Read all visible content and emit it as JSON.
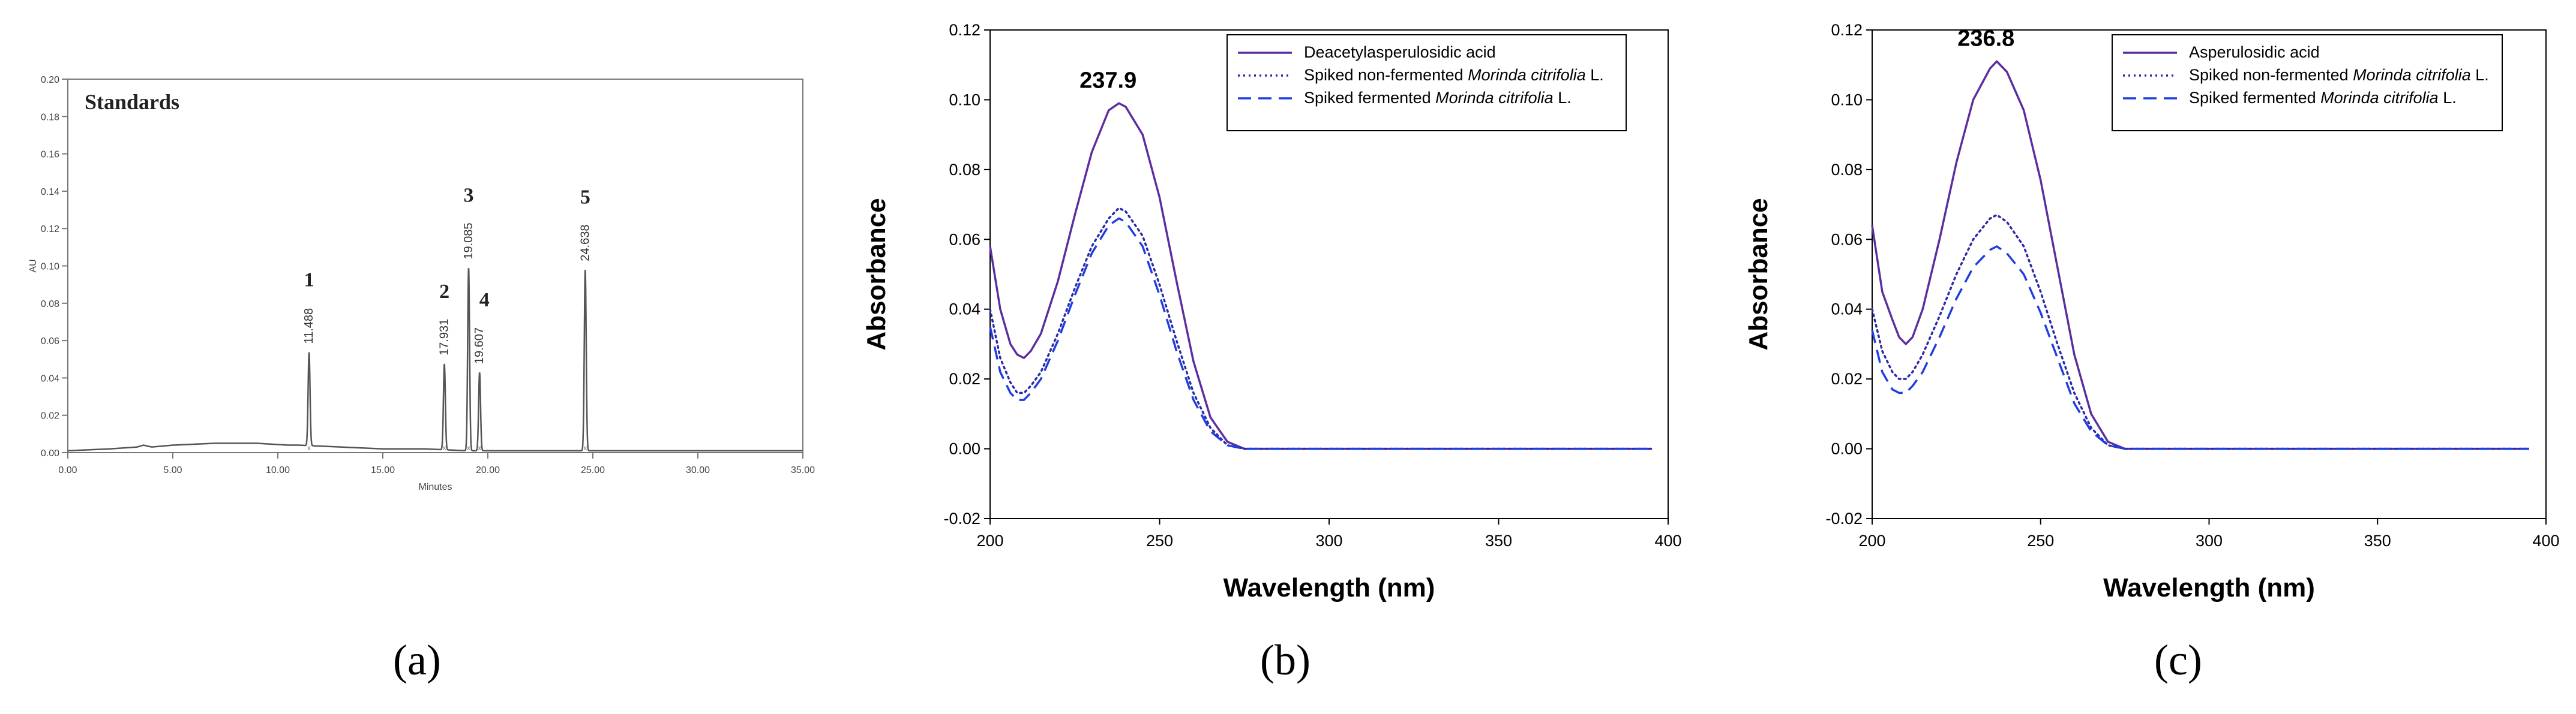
{
  "chart_data": [
    {
      "panel_label": "a",
      "type": "line",
      "title": "Standards",
      "xlabel": "Minutes",
      "ylabel": "AU",
      "xlim": [
        0,
        35
      ],
      "ylim": [
        0,
        0.2
      ],
      "xticks": [
        "0.00",
        "5.00",
        "10.00",
        "15.00",
        "20.00",
        "25.00",
        "30.00",
        "35.00"
      ],
      "yticks": [
        "0.00",
        "0.02",
        "0.04",
        "0.06",
        "0.08",
        "0.10",
        "0.12",
        "0.14",
        "0.16",
        "0.18",
        "0.20"
      ],
      "color": "#555555",
      "peaks": [
        {
          "number": "1",
          "retention_time": "11.488",
          "rt": 11.488,
          "height": 0.05
        },
        {
          "number": "2",
          "retention_time": "17.931",
          "rt": 17.931,
          "height": 0.046
        },
        {
          "number": "3",
          "retention_time": "19.085",
          "rt": 19.085,
          "height": 0.098
        },
        {
          "number": "4",
          "retention_time": "19.607",
          "rt": 19.607,
          "height": 0.042
        },
        {
          "number": "5",
          "retention_time": "24.638",
          "rt": 24.638,
          "height": 0.097
        }
      ],
      "baseline": [
        [
          0,
          0.001
        ],
        [
          2,
          0.002
        ],
        [
          3.3,
          0.003
        ],
        [
          3.6,
          0.004
        ],
        [
          4,
          0.003
        ],
        [
          5,
          0.004
        ],
        [
          7,
          0.005
        ],
        [
          9,
          0.005
        ],
        [
          10.5,
          0.004
        ],
        [
          11,
          0.004
        ],
        [
          13,
          0.003
        ],
        [
          15,
          0.002
        ],
        [
          17,
          0.002
        ],
        [
          19,
          0.001
        ],
        [
          21,
          0.001
        ],
        [
          23,
          0.001
        ],
        [
          26,
          0.001
        ],
        [
          30,
          0.001
        ],
        [
          35,
          0.001
        ]
      ]
    },
    {
      "panel_label": "b",
      "type": "line",
      "xlabel": "Wavelength (nm)",
      "ylabel": "Absorbance",
      "xlim": [
        200,
        400
      ],
      "ylim": [
        -0.02,
        0.12
      ],
      "xticks": [
        "200",
        "250",
        "300",
        "350",
        "400"
      ],
      "yticks": [
        "-0.02",
        "0.00",
        "0.02",
        "0.04",
        "0.06",
        "0.08",
        "0.10",
        "0.12"
      ],
      "peak_annotation": "237.9",
      "series": [
        {
          "name": "Deacetylasperulosidic acid",
          "color": "#5b2d9e",
          "dash": "solid",
          "x": [
            200,
            203,
            206,
            208,
            210,
            212,
            215,
            220,
            225,
            230,
            235,
            238,
            240,
            245,
            250,
            255,
            260,
            265,
            270,
            275,
            280,
            290,
            300,
            320,
            350,
            395
          ],
          "y": [
            0.058,
            0.04,
            0.03,
            0.027,
            0.026,
            0.028,
            0.033,
            0.048,
            0.067,
            0.085,
            0.097,
            0.099,
            0.098,
            0.09,
            0.072,
            0.048,
            0.025,
            0.009,
            0.002,
            0,
            0,
            0,
            0,
            0,
            0,
            0
          ]
        },
        {
          "name": "Spiked non-fermented Morinda citrifolia L.",
          "name_prefix": "Spiked non-fermented ",
          "name_italic": "Morinda citrifolia",
          "name_suffix": " L.",
          "color": "#2a2aa8",
          "dash": "dotted",
          "x": [
            200,
            203,
            206,
            208,
            210,
            212,
            215,
            220,
            225,
            230,
            235,
            238,
            240,
            245,
            250,
            255,
            260,
            265,
            270,
            275,
            280,
            290,
            300,
            320,
            350,
            395
          ],
          "y": [
            0.04,
            0.026,
            0.019,
            0.016,
            0.016,
            0.018,
            0.022,
            0.033,
            0.046,
            0.058,
            0.066,
            0.069,
            0.068,
            0.061,
            0.047,
            0.031,
            0.016,
            0.006,
            0.001,
            0,
            0,
            0,
            0,
            0,
            0,
            0
          ]
        },
        {
          "name": "Spiked fermented Morinda citrifolia L.",
          "name_prefix": "Spiked fermented ",
          "name_italic": "Morinda citrifolia",
          "name_suffix": " L.",
          "color": "#1f3ee0",
          "dash": "dashed",
          "x": [
            200,
            203,
            206,
            208,
            210,
            212,
            215,
            220,
            225,
            230,
            235,
            238,
            240,
            245,
            250,
            255,
            260,
            265,
            270,
            275,
            280,
            290,
            300,
            320,
            350,
            395
          ],
          "y": [
            0.035,
            0.022,
            0.016,
            0.014,
            0.014,
            0.016,
            0.02,
            0.031,
            0.044,
            0.056,
            0.064,
            0.066,
            0.065,
            0.058,
            0.044,
            0.028,
            0.014,
            0.005,
            0.001,
            0,
            0,
            0,
            0,
            0,
            0,
            0
          ]
        }
      ]
    },
    {
      "panel_label": "c",
      "type": "line",
      "xlabel": "Wavelength (nm)",
      "ylabel": "Absorbance",
      "xlim": [
        200,
        400
      ],
      "ylim": [
        -0.02,
        0.12
      ],
      "xticks": [
        "200",
        "250",
        "300",
        "350",
        "400"
      ],
      "yticks": [
        "-0.02",
        "0.00",
        "0.02",
        "0.04",
        "0.06",
        "0.08",
        "0.10",
        "0.12"
      ],
      "peak_annotation": "236.8",
      "series": [
        {
          "name": "Asperulosidic acid",
          "color": "#5b2d9e",
          "dash": "solid",
          "x": [
            200,
            203,
            206,
            208,
            210,
            212,
            215,
            220,
            225,
            230,
            235,
            237,
            240,
            245,
            250,
            255,
            260,
            265,
            270,
            275,
            280,
            290,
            300,
            320,
            350,
            395
          ],
          "y": [
            0.064,
            0.045,
            0.037,
            0.032,
            0.03,
            0.032,
            0.04,
            0.06,
            0.082,
            0.1,
            0.109,
            0.111,
            0.108,
            0.097,
            0.077,
            0.052,
            0.027,
            0.01,
            0.002,
            0,
            0,
            0,
            0,
            0,
            0,
            0
          ]
        },
        {
          "name": "Spiked non-fermented Morinda citrifolia L.",
          "name_prefix": "Spiked non-fermented ",
          "name_italic": "Morinda citrifolia",
          "name_suffix": " L.",
          "color": "#2a2aa8",
          "dash": "dotted",
          "x": [
            200,
            203,
            206,
            208,
            210,
            212,
            215,
            220,
            225,
            230,
            235,
            237,
            240,
            245,
            250,
            255,
            260,
            265,
            270,
            275,
            280,
            290,
            300,
            320,
            350,
            395
          ],
          "y": [
            0.04,
            0.028,
            0.022,
            0.02,
            0.02,
            0.022,
            0.027,
            0.038,
            0.05,
            0.06,
            0.066,
            0.067,
            0.065,
            0.058,
            0.045,
            0.03,
            0.016,
            0.006,
            0.001,
            0,
            0,
            0,
            0,
            0,
            0,
            0
          ]
        },
        {
          "name": "Spiked fermented Morinda citrifolia L.",
          "name_prefix": "Spiked fermented ",
          "name_italic": "Morinda citrifolia",
          "name_suffix": " L.",
          "color": "#1f3ee0",
          "dash": "dashed",
          "x": [
            200,
            203,
            206,
            208,
            210,
            212,
            215,
            220,
            225,
            230,
            235,
            237,
            240,
            245,
            250,
            255,
            260,
            265,
            270,
            275,
            280,
            290,
            300,
            320,
            350,
            395
          ],
          "y": [
            0.034,
            0.022,
            0.017,
            0.016,
            0.016,
            0.018,
            0.022,
            0.032,
            0.043,
            0.052,
            0.057,
            0.058,
            0.056,
            0.05,
            0.039,
            0.026,
            0.013,
            0.005,
            0.001,
            0,
            0,
            0,
            0,
            0,
            0,
            0
          ]
        }
      ]
    }
  ],
  "captions": [
    "(a)",
    "(b)",
    "(c)"
  ]
}
